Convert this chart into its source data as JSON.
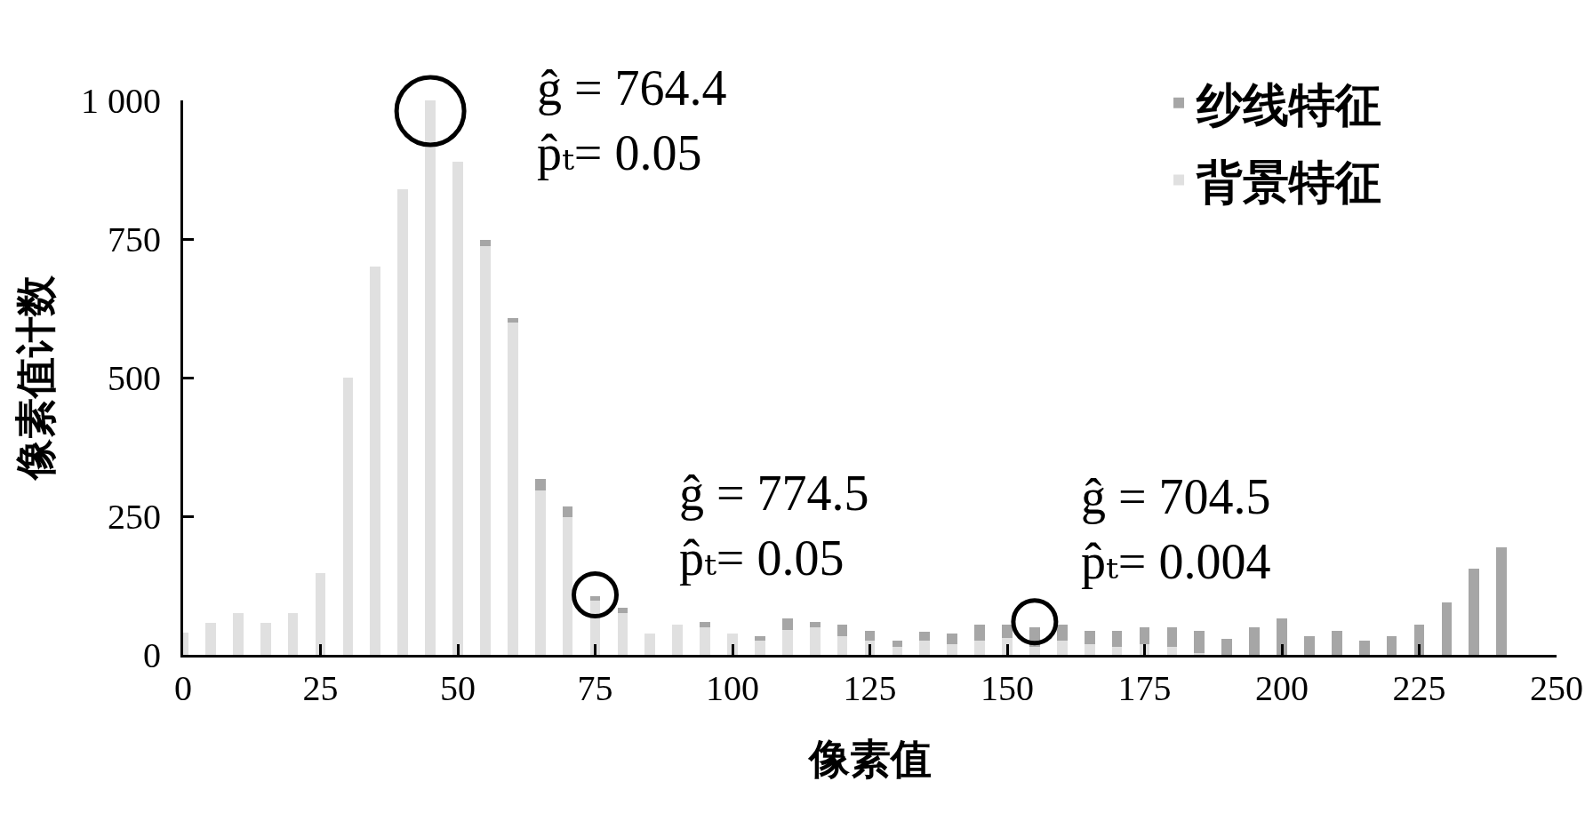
{
  "chart_data": {
    "type": "bar",
    "stacked": true,
    "x": [
      0,
      5,
      10,
      15,
      20,
      25,
      30,
      35,
      40,
      45,
      50,
      55,
      60,
      65,
      70,
      75,
      80,
      85,
      90,
      95,
      100,
      105,
      110,
      115,
      120,
      125,
      130,
      135,
      140,
      145,
      150,
      155,
      160,
      165,
      170,
      175,
      180,
      185,
      190,
      195,
      200,
      205,
      210,
      215,
      220,
      225,
      230,
      235,
      240
    ],
    "series": [
      {
        "name": "背景特征",
        "color": "#e0e0e0",
        "values": [
          40,
          57,
          76,
          57,
          76,
          147,
          500,
          700,
          840,
          1000,
          890,
          737,
          599,
          296,
          248,
          97,
          75,
          39,
          54,
          50,
          39,
          25,
          45,
          50,
          34,
          25,
          15,
          25,
          19,
          25,
          30,
          14,
          25,
          20,
          15,
          20,
          15,
          4,
          null,
          null,
          null,
          null,
          null,
          null,
          null,
          null,
          null,
          null,
          null
        ]
      },
      {
        "name": "纱线特征",
        "color": "#a6a6a6",
        "values": [
          null,
          null,
          null,
          null,
          null,
          null,
          null,
          null,
          null,
          null,
          null,
          12,
          9,
          21,
          19,
          8,
          10,
          null,
          null,
          9,
          null,
          9,
          20,
          9,
          20,
          19,
          10,
          17,
          20,
          29,
          24,
          36,
          30,
          24,
          29,
          30,
          35,
          40,
          29,
          50,
          65,
          34,
          44,
          25,
          34,
          55,
          95,
          155,
          194
        ]
      }
    ],
    "xlabel": "像素值",
    "ylabel": "像素值计数",
    "xlim": [
      0,
      250
    ],
    "xticks": [
      0,
      25,
      50,
      75,
      100,
      125,
      150,
      175,
      200,
      225,
      250
    ],
    "ylim": [
      0,
      1000
    ],
    "yticks": [
      0,
      250,
      500,
      750,
      {
        "value": 1000,
        "label": "1 000"
      }
    ],
    "grid": false,
    "legend": "top right",
    "annotations": [
      {
        "text": "ĝ = 764.4\np̂ₜ= 0.05",
        "x": 45,
        "y": 1000
      },
      {
        "text": "ĝ = 774.5\np̂ₜ= 0.05",
        "x": 75,
        "y": 105
      },
      {
        "text": "ĝ = 704.5\np̂ₜ= 0.004",
        "x": 155,
        "y": 50
      }
    ]
  }
}
